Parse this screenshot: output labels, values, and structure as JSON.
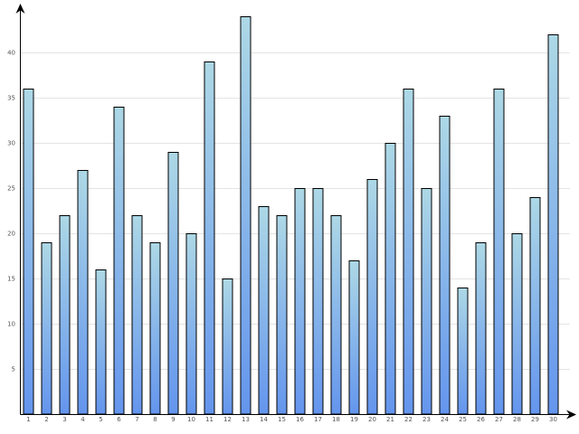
{
  "chart_data": {
    "type": "bar",
    "title": "",
    "xlabel": "",
    "ylabel": "",
    "categories": [
      "1",
      "2",
      "3",
      "4",
      "5",
      "6",
      "7",
      "8",
      "9",
      "10",
      "11",
      "12",
      "13",
      "14",
      "15",
      "16",
      "17",
      "18",
      "19",
      "20",
      "21",
      "22",
      "23",
      "24",
      "25",
      "26",
      "27",
      "28",
      "29",
      "30"
    ],
    "values": [
      36,
      19,
      22,
      27,
      16,
      34,
      22,
      19,
      29,
      20,
      39,
      15,
      44,
      23,
      22,
      25,
      25,
      22,
      17,
      26,
      30,
      36,
      25,
      33,
      14,
      19,
      36,
      20,
      24,
      42
    ],
    "y_ticks": [
      5,
      10,
      15,
      20,
      25,
      30,
      35,
      40
    ],
    "y_tick_labels": [
      "5",
      "10",
      "15",
      "20",
      "25",
      "30",
      "35",
      "40"
    ],
    "ylim": [
      0,
      45
    ],
    "grid": true,
    "legend": "none",
    "colors": {
      "bar_top": "#add8e6",
      "bar_bottom": "#6495ed",
      "bar_stroke": "#000000",
      "grid": "#e4e4e4",
      "axis": "#000000"
    }
  }
}
